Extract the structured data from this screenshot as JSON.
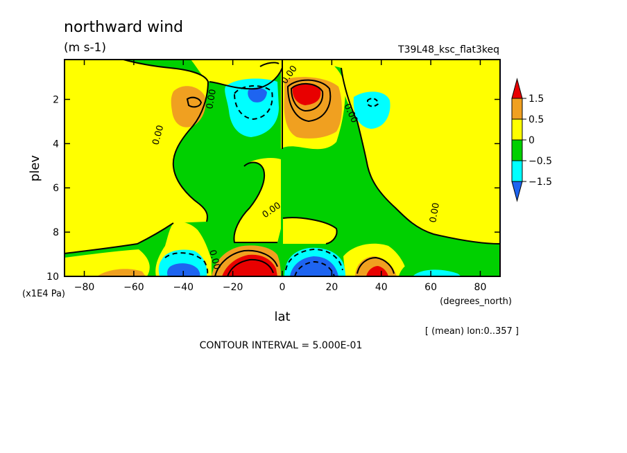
{
  "chart_data": {
    "type": "heatmap",
    "title": "northward wind",
    "units": "(m s-1)",
    "run_label": "T39L48_ksc_flat3keq",
    "xlabel": "lat",
    "ylabel": "plev",
    "x_units": "(degrees_north)",
    "y_units": "(x1E4 Pa)",
    "x_ticks": [
      -80,
      -60,
      -40,
      -20,
      0,
      20,
      40,
      60,
      80
    ],
    "x_tick_labels": [
      "−80",
      "−60",
      "−40",
      "−20",
      "0",
      "20",
      "40",
      "60",
      "80"
    ],
    "y_ticks": [
      2,
      4,
      6,
      8,
      10
    ],
    "y_tick_labels": [
      "2",
      "4",
      "6",
      "8",
      "10"
    ],
    "xlim": [
      -88,
      88
    ],
    "ylim": [
      10,
      0.2
    ],
    "contour_interval": "CONTOUR INTERVAL = 5.000E-01",
    "mean_note": "[ (mean) lon:0..357 ]",
    "contour_labels": [
      "0.00",
      "0.00",
      "0.00",
      "0.00",
      "0.00",
      "0.00",
      "0.00",
      "0.00"
    ],
    "colorbar": {
      "levels": [
        1.5,
        0.5,
        0,
        -0.5,
        -1.5
      ],
      "labels": [
        "1.5",
        "0.5",
        "0",
        "−0.5",
        "−1.5"
      ],
      "colors": [
        "#e80000",
        "#f0a020",
        "#ffff00",
        "#00d000",
        "#00ffff",
        "#1e64f0"
      ]
    },
    "features": [
      {
        "lat": -35,
        "plev": 2.0,
        "value": 0.7,
        "sign": "positive"
      },
      {
        "lat": -10,
        "plev": 1.8,
        "value": -1.6,
        "sign": "negative"
      },
      {
        "lat": 8,
        "plev": 1.8,
        "value": 1.7,
        "sign": "positive"
      },
      {
        "lat": 33,
        "plev": 2.1,
        "value": -0.7,
        "sign": "negative"
      },
      {
        "lat": -40,
        "plev": 9.8,
        "value": -1.6,
        "sign": "negative"
      },
      {
        "lat": -15,
        "plev": 9.9,
        "value": 2.5,
        "sign": "positive"
      },
      {
        "lat": 12,
        "plev": 9.9,
        "value": -2.5,
        "sign": "negative"
      },
      {
        "lat": 38,
        "plev": 9.8,
        "value": 1.6,
        "sign": "positive"
      },
      {
        "lat": 62,
        "plev": 9.9,
        "value": -0.6,
        "sign": "negative"
      },
      {
        "lat": -65,
        "plev": 9.9,
        "value": 0.6,
        "sign": "positive"
      }
    ]
  }
}
